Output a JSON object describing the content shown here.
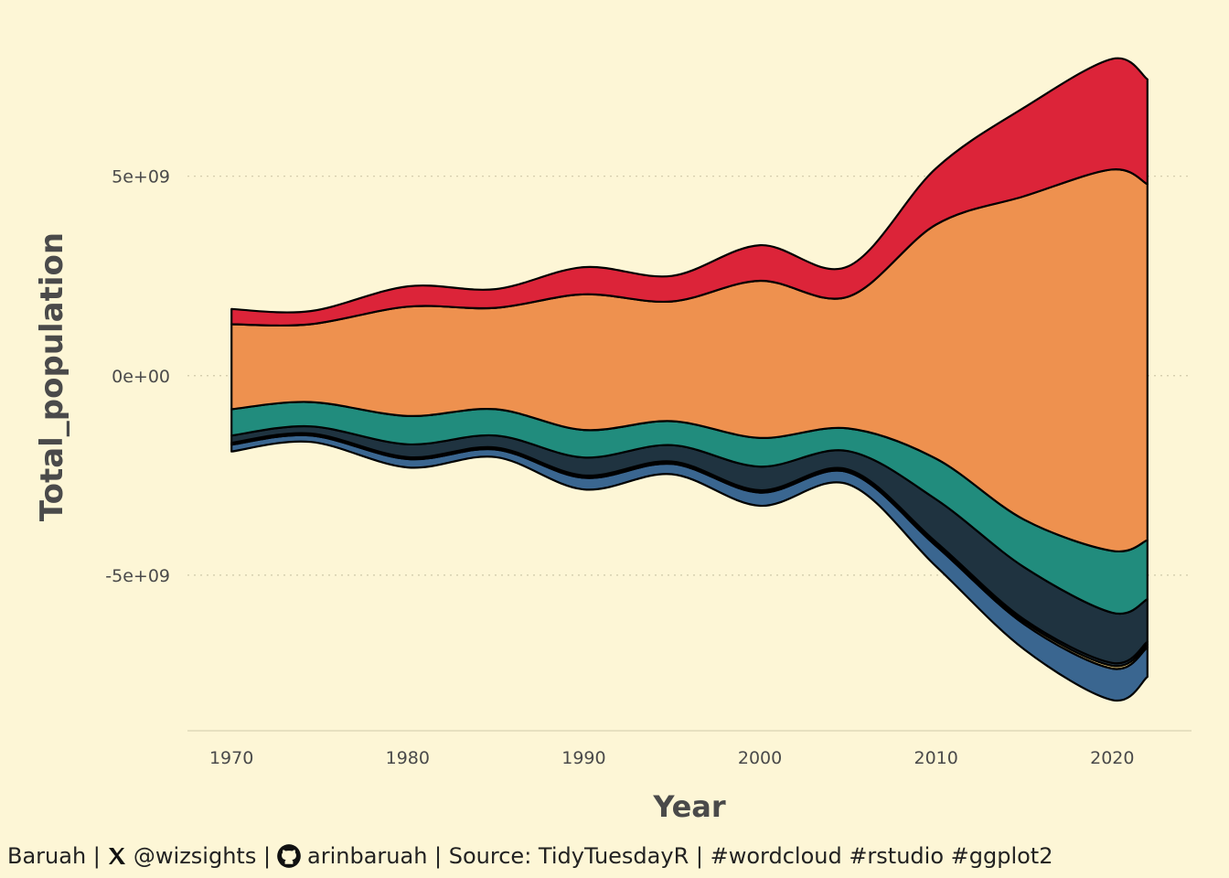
{
  "chart_data": {
    "type": "area",
    "subtype": "streamgraph",
    "xlabel": "Year",
    "ylabel": "Total_population",
    "x_ticks": [
      "1970",
      "1980",
      "1990",
      "2000",
      "2010",
      "2020"
    ],
    "y_ticks": [
      {
        "value": 5000000000,
        "label": "5e+09"
      },
      {
        "value": 0,
        "label": "0e+00"
      },
      {
        "value": -5000000000,
        "label": "-5e+09"
      }
    ],
    "ylim": [
      -8900000000,
      8500000000
    ],
    "xlim": [
      1967.5,
      2024.5
    ],
    "grid": "horizontal-dotted",
    "legend": "none",
    "x": [
      1970,
      1974.5,
      1980,
      1985,
      1990,
      1995,
      2000,
      2005,
      2010,
      2015,
      2020,
      2022
    ],
    "series": [
      {
        "color": "#3a6690",
        "values": [
          0.17,
          0.16,
          0.21,
          0.19,
          0.29,
          0.26,
          0.33,
          0.3,
          0.51,
          0.63,
          0.79,
          0.74
        ]
      },
      {
        "color": "#f3d27a",
        "values": [
          0.02,
          0.02,
          0.02,
          0.02,
          0.03,
          0.03,
          0.03,
          0.03,
          0.05,
          0.06,
          0.07,
          0.07
        ]
      },
      {
        "color": "#1f3340",
        "values": [
          0.03,
          0.03,
          0.03,
          0.03,
          0.03,
          0.03,
          0.03,
          0.04,
          0.05,
          0.06,
          0.07,
          0.07
        ]
      },
      {
        "color": "#1f3340",
        "values": [
          0.18,
          0.18,
          0.32,
          0.3,
          0.45,
          0.41,
          0.59,
          0.46,
          1.07,
          1.31,
          1.26,
          1.07
        ]
      },
      {
        "color": "#218c7d",
        "values": [
          0.66,
          0.61,
          0.71,
          0.66,
          0.69,
          0.6,
          0.72,
          0.57,
          1.02,
          1.19,
          1.55,
          1.48
        ]
      },
      {
        "color": "#ee914f",
        "values": [
          2.13,
          1.95,
          2.74,
          2.54,
          3.4,
          3.0,
          3.94,
          3.3,
          5.87,
          8.11,
          9.56,
          8.92
        ]
      },
      {
        "color": "#dc2439",
        "values": [
          0.38,
          0.33,
          0.51,
          0.47,
          0.68,
          0.64,
          0.89,
          0.76,
          1.41,
          2.22,
          2.77,
          2.63
        ]
      }
    ],
    "series_unit": "billions",
    "baseline": [
      -1.9,
      -1.66,
      -2.3,
      -2.04,
      -2.85,
      -2.47,
      -3.26,
      -2.72,
      -4.78,
      -6.86,
      -8.13,
      -7.55
    ]
  },
  "caption": {
    "prefix": "Baruah |",
    "x_handle": "@wizsights |",
    "github_handle": "arinbaruah | Source: TidyTuesdayR | #wordcloud #rstudio #ggplot2",
    "x_icon": "x-logo-icon",
    "github_icon": "github-icon"
  }
}
